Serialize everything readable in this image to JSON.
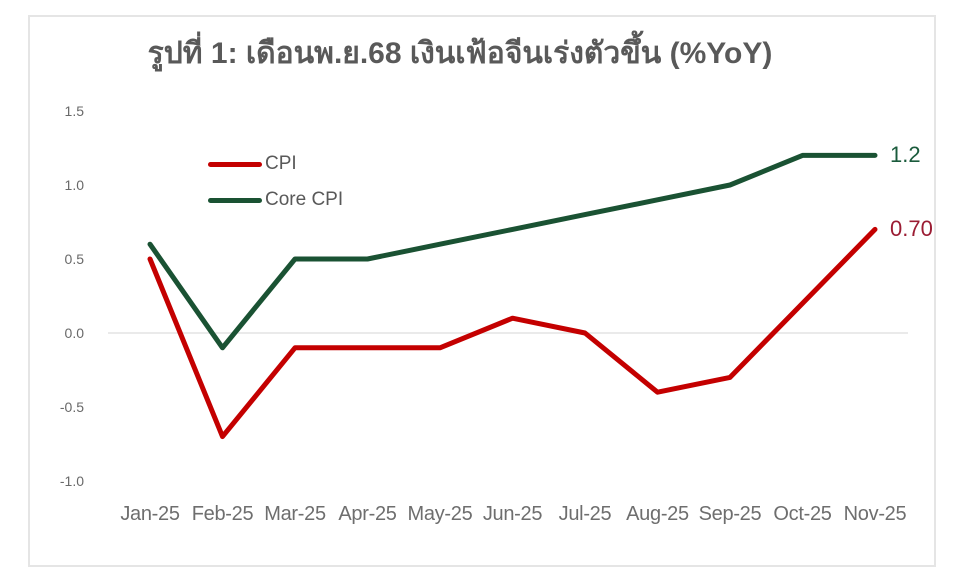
{
  "chart_data": {
    "type": "line",
    "title": "รูปที่ 1: เดือนพ.ย.68 เงินเฟ้อจีนเร่งตัวขึ้น (%YoY)",
    "unit": "%YoY",
    "categories": [
      "Jan-25",
      "Feb-25",
      "Mar-25",
      "Apr-25",
      "May-25",
      "Jun-25",
      "Jul-25",
      "Aug-25",
      "Sep-25",
      "Oct-25",
      "Nov-25"
    ],
    "series": [
      {
        "name": "CPI",
        "color": "#C40000",
        "values": [
          0.5,
          -0.7,
          -0.1,
          -0.1,
          -0.1,
          0.1,
          0.0,
          -0.4,
          -0.3,
          0.2,
          0.7
        ],
        "end_label": "0.70",
        "end_label_color": "#9B1C33"
      },
      {
        "name": "Core CPI",
        "color": "#1A5233",
        "values": [
          0.6,
          -0.1,
          0.5,
          0.5,
          0.6,
          0.7,
          0.8,
          0.9,
          1.0,
          1.2,
          1.2
        ],
        "end_label": "1.2",
        "end_label_color": "#1A5B3C"
      }
    ],
    "ylim": [
      -1.0,
      1.5
    ],
    "yticks": [
      "1.5",
      "1.0",
      "0.5",
      "0.0",
      "-0.5",
      "-1.0"
    ],
    "grid": "horizontal-zero-line-only",
    "legend_position": "inside-top-left"
  }
}
